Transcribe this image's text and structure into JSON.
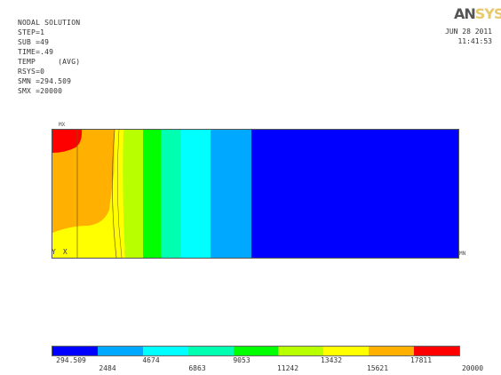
{
  "header": {
    "title": "NODAL SOLUTION",
    "lines": [
      "STEP=1",
      "SUB =49",
      "TIME=.49",
      "TEMP     (AVG)",
      "RSYS=0",
      "SMN =294.509",
      "SMX =20000"
    ]
  },
  "logo": {
    "part1": "AN",
    "part2": "SYS"
  },
  "datetime": {
    "date": "JUN 28 2011",
    "time": "11:41:53"
  },
  "plot_labels": {
    "mx": "MX",
    "mn": "MN",
    "axis_y": "Y",
    "axis_x": "X"
  },
  "legend": {
    "colors": [
      "#0000ff",
      "#00a8ff",
      "#00ffff",
      "#00ffb0",
      "#00ff00",
      "#b8ff00",
      "#ffff00",
      "#ffb000",
      "#ff0000"
    ],
    "labels_top": [
      "294.509",
      "4674",
      "9053",
      "13432",
      "17811"
    ],
    "labels_bottom": [
      "2484",
      "6863",
      "11242",
      "15621",
      "20000"
    ]
  },
  "contour_bands": [
    {
      "color": "#ff0000",
      "name": "max-region"
    },
    {
      "color": "#ffb000",
      "name": "band-8"
    },
    {
      "color": "#ffff00",
      "name": "band-7"
    },
    {
      "color": "#b8ff00",
      "name": "band-6"
    },
    {
      "color": "#00ff00",
      "name": "band-5"
    },
    {
      "color": "#00ffb0",
      "name": "band-4"
    },
    {
      "color": "#00ffff",
      "name": "band-3"
    },
    {
      "color": "#00a8ff",
      "name": "band-2"
    },
    {
      "color": "#0000ff",
      "name": "band-1"
    }
  ]
}
